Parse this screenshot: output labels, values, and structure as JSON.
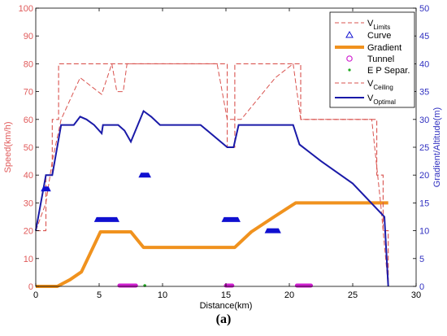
{
  "caption": "(a)",
  "chart_data": {
    "type": "line",
    "xlabel": "Distance(km)",
    "ylabel_left": "Speed(km/h)",
    "ylabel_right": "Gradient/Altitude(m)",
    "xlim": [
      0,
      30
    ],
    "ylim_left": [
      0,
      100
    ],
    "ylim_right": [
      0,
      50
    ],
    "xticks": [
      0,
      5,
      10,
      15,
      20,
      25,
      30
    ],
    "yticks_left": [
      0,
      10,
      20,
      30,
      40,
      50,
      60,
      70,
      80,
      90,
      100
    ],
    "yticks_right": [
      0,
      5,
      10,
      15,
      20,
      25,
      30,
      35,
      40,
      45,
      50
    ],
    "grid": false,
    "legend_position": "top-right",
    "colors": {
      "left_axis": "#e05a5a",
      "right_axis": "#3030c0",
      "limits": "#d9534f",
      "gradient": "#f0921e",
      "optimal": "#1a1aa8",
      "curve": "#1010d0",
      "tunnel": "#d020d0",
      "ep": "#22aa22"
    },
    "legend": [
      {
        "key": "V",
        "sub": "Limits",
        "style": "dashed-red"
      },
      {
        "key": "Curve",
        "sub": "",
        "style": "blue-triangle"
      },
      {
        "key": "Gradient",
        "sub": "",
        "style": "orange-line"
      },
      {
        "key": "Tunnel",
        "sub": "",
        "style": "magenta-circle"
      },
      {
        "key": "E P Separ.",
        "sub": "",
        "style": "green-dot"
      },
      {
        "key": "V",
        "sub": "Ceiling",
        "style": "dashed-red-thin"
      },
      {
        "key": "V",
        "sub": "Optimal",
        "style": "blue-line"
      }
    ],
    "series": [
      {
        "name": "V_Limits",
        "axis": "left",
        "x": [
          0,
          0.8,
          0.8,
          1.3,
          1.3,
          1.8,
          1.8,
          15.1,
          15.1,
          15.7,
          15.7,
          20.9,
          20.9,
          26.9,
          26.9,
          27.4,
          27.4,
          27.8,
          27.8
        ],
        "y": [
          20,
          20,
          40,
          40,
          60,
          60,
          80,
          80,
          50,
          50,
          80,
          80,
          60,
          60,
          40,
          40,
          20,
          20,
          0
        ]
      },
      {
        "name": "V_Ceiling",
        "axis": "left",
        "x": [
          0,
          0.8,
          1.3,
          2.0,
          3.5,
          5.2,
          6.0,
          6.4,
          6.9,
          7.2,
          14.3,
          15.1,
          15.7,
          16.2,
          18.9,
          20.3,
          20.9,
          26.5,
          27.2,
          27.8
        ],
        "y": [
          20,
          30,
          45,
          60,
          75,
          69,
          80,
          70,
          70,
          80,
          80,
          60,
          60,
          60,
          75,
          80,
          60,
          60,
          30,
          0
        ]
      },
      {
        "name": "V_Optimal",
        "axis": "left",
        "x": [
          0,
          0.8,
          1.3,
          2.0,
          3.0,
          3.5,
          4.0,
          4.6,
          5.2,
          5.3,
          6.5,
          7.0,
          7.5,
          8.5,
          9.1,
          9.8,
          10.2,
          13.0,
          15.1,
          15.6,
          16.0,
          20.3,
          20.8,
          22.5,
          25.0,
          27.5,
          27.8
        ],
        "y": [
          20,
          40,
          40,
          58,
          58,
          61,
          60,
          58,
          55,
          58,
          58,
          56,
          52,
          63,
          61,
          58,
          58,
          58,
          50,
          50,
          58,
          58,
          51,
          45,
          37,
          25,
          0
        ]
      },
      {
        "name": "Gradient",
        "axis": "right",
        "x": [
          0,
          1.7,
          2.7,
          3.6,
          5.1,
          7.5,
          8.5,
          15.7,
          17.0,
          18.8,
          20.5,
          27.8
        ],
        "y": [
          0,
          0,
          1.2,
          2.6,
          9.8,
          9.8,
          7.0,
          7.0,
          9.8,
          12.5,
          15,
          15
        ]
      }
    ],
    "curves": [
      {
        "x": 0.8,
        "width": 0.8,
        "y": 17.5
      },
      {
        "x": 5.6,
        "width": 2.0,
        "y": 12.0
      },
      {
        "x": 8.6,
        "width": 1.0,
        "y": 20.0
      },
      {
        "x": 15.4,
        "width": 1.5,
        "y": 12.0
      },
      {
        "x": 18.7,
        "width": 1.3,
        "y": 10.0
      }
    ],
    "tunnels": [
      {
        "x0": 6.6,
        "x1": 7.9
      },
      {
        "x0": 15.0,
        "x1": 15.5
      },
      {
        "x0": 20.6,
        "x1": 21.7
      }
    ],
    "ep_separations": [
      8.6
    ]
  }
}
